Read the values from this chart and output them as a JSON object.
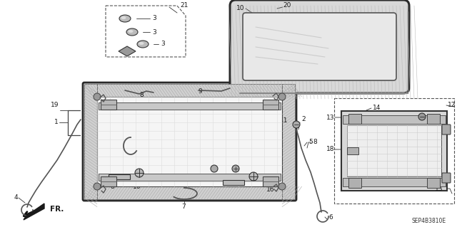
{
  "bg_color": "#ffffff",
  "fg_color": "#1a1a1a",
  "diagram_code": "SEP4B3810E",
  "line_color": "#3a3a3a",
  "gray1": "#aaaaaa",
  "gray2": "#cccccc",
  "gray3": "#888888",
  "hatch_color": "#999999"
}
